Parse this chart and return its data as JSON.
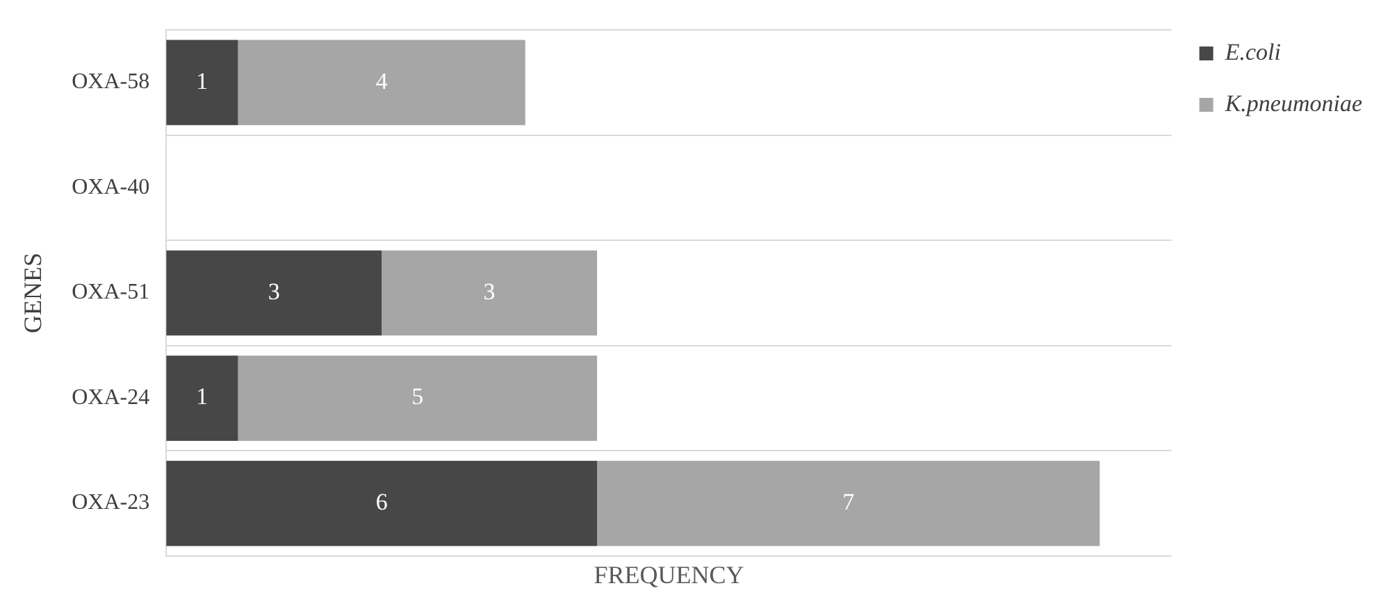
{
  "chart_data": {
    "type": "bar",
    "orientation": "horizontal",
    "stacked": true,
    "xlabel": "FREQUENCY",
    "ylabel": "GENES",
    "categories": [
      "OXA-58",
      "OXA-40",
      "OXA-51",
      "OXA-24",
      "OXA-23"
    ],
    "series": [
      {
        "name": "E.coli",
        "color": "#474747",
        "values": [
          1,
          null,
          3,
          1,
          6
        ]
      },
      {
        "name": "K.pneumoniae",
        "color": "#a6a6a6",
        "values": [
          4,
          null,
          3,
          5,
          7
        ]
      }
    ],
    "xlim": [
      0,
      14
    ],
    "tick_labels": "y",
    "grid": "y",
    "legend": "top right",
    "data_labels": true
  }
}
